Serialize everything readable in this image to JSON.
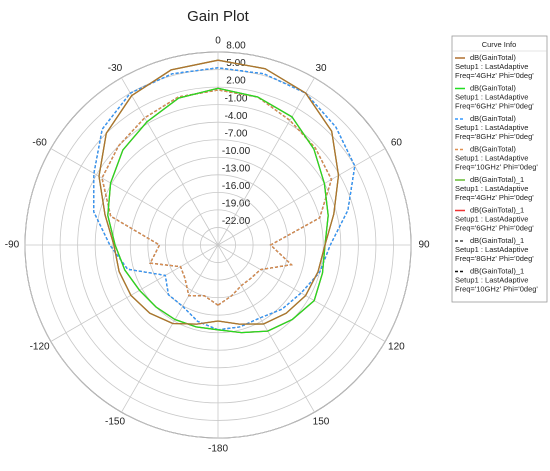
{
  "chart_data": {
    "type": "polar",
    "title": "Gain Plot",
    "theta": [
      -180,
      -165,
      -150,
      -135,
      -120,
      -105,
      -90,
      -75,
      -60,
      -45,
      -30,
      -15,
      0,
      15,
      30,
      45,
      60,
      75,
      90,
      105,
      120,
      135,
      150,
      165
    ],
    "thetaticks": [
      0,
      30,
      60,
      90,
      120,
      150,
      -180,
      -150,
      -120,
      -90,
      -60,
      -30
    ],
    "rlim": [
      -25,
      8
    ],
    "rticks": [
      {
        "value": -22,
        "label": "-22.00"
      },
      {
        "value": -19,
        "label": "-19.00"
      },
      {
        "value": -16,
        "label": "-16.00"
      },
      {
        "value": -13,
        "label": "-13.00"
      },
      {
        "value": -10,
        "label": "-10.00"
      },
      {
        "value": -7,
        "label": "-7.00"
      },
      {
        "value": -4,
        "label": "-4.00"
      },
      {
        "value": -1,
        "label": "-1.00"
      },
      {
        "value": 2,
        "label": "2.00"
      },
      {
        "value": 5,
        "label": "5.00"
      },
      {
        "value": 8,
        "label": "8.00"
      }
    ],
    "grid": true,
    "legend_title": "Curve Info",
    "legend_position": "upper right",
    "series": [
      {
        "name": "dB(GainTotal)",
        "setup": "Setup1 : LastAdaptive",
        "condition": "Freq='4GHz' Phi='0deg'",
        "color": "#b07030",
        "dashed": false,
        "values": [
          -12,
          -11,
          -9.5,
          -8.5,
          -7.8,
          -7.5,
          -7.2,
          -5,
          -1.5,
          2,
          4.5,
          6,
          6.6,
          6.2,
          5,
          2.5,
          -1.2,
          -4.5,
          -6.7,
          -7.3,
          -7.7,
          -8.5,
          -9.4,
          -11
        ]
      },
      {
        "name": "dB(GainTotal)",
        "setup": "Setup1 : LastAdaptive",
        "condition": "Freq='6GHz' Phi='0deg'",
        "color": "#22dd22",
        "dashed": false,
        "values": [
          -10.5,
          -10.5,
          -10.3,
          -10,
          -9.5,
          -8.5,
          -7.4,
          -5.5,
          -3.8,
          -2,
          -0.7,
          1,
          1.8,
          1.2,
          0.3,
          -1.8,
          -4,
          -5.5,
          -6.7,
          -6.5,
          -6,
          -7,
          -8,
          -9.5
        ]
      },
      {
        "name": "dB(GainTotal)",
        "setup": "Setup1 : LastAdaptive",
        "condition": "Freq='8GHz' Phi='0deg'",
        "color": "#3399ff",
        "dashed": true,
        "values": [
          -10.5,
          -11.5,
          -12.9,
          -13,
          -14.6,
          -9,
          -6.5,
          -3,
          -0.5,
          3,
          5,
          5.3,
          5.3,
          5.3,
          5,
          3.5,
          2,
          -2,
          -5.8,
          -7,
          -8.6,
          -9.5,
          -10.6,
          -10.5
        ]
      },
      {
        "name": "dB(GainTotal)",
        "setup": "Setup1 : LastAdaptive",
        "condition": "Freq='10GHz' Phi='0deg'",
        "color": "#e09050",
        "dashed": true,
        "values": [
          -14.7,
          -16,
          -15,
          -17,
          -17.6,
          -13,
          -15,
          -6,
          -2.1,
          -1,
          0.1,
          1.2,
          1.5,
          1.2,
          -0.4,
          -1.5,
          -2.6,
          -7,
          -16,
          -12,
          -16.6,
          -17,
          -17,
          -16
        ]
      },
      {
        "name": "dB(GainTotal)_1",
        "setup": "Setup1 : LastAdaptive",
        "condition": "Freq='4GHz' Phi='0deg'",
        "color": "#66bb33",
        "dashed": false,
        "values": [
          -12,
          -11,
          -9.5,
          -8.5,
          -7.8,
          -7.5,
          -7.2,
          -5,
          -1.5,
          2,
          4.5,
          6,
          6.6,
          6.2,
          5,
          2.5,
          -1.2,
          -4.5,
          -6.7,
          -7.3,
          -7.7,
          -8.5,
          -9.4,
          -11
        ]
      },
      {
        "name": "dB(GainTotal)_1",
        "setup": "Setup1 : LastAdaptive",
        "condition": "Freq='6GHz' Phi='0deg'",
        "color": "#ee3333",
        "dashed": false,
        "values": [
          -10.5,
          -10.5,
          -10.3,
          -10,
          -9.5,
          -8.5,
          -7.4,
          -5.5,
          -3.8,
          -2,
          -0.7,
          1,
          1.8,
          1.2,
          0.3,
          -1.8,
          -4,
          -5.5,
          -6.7,
          -6.5,
          -6,
          -7,
          -8,
          -9.5
        ]
      },
      {
        "name": "dB(GainTotal)_1",
        "setup": "Setup1 : LastAdaptive",
        "condition": "Freq='8GHz' Phi='0deg'",
        "color": "#444444",
        "dashed": true,
        "values": [
          -10.5,
          -11.5,
          -12.9,
          -13,
          -14.6,
          -9,
          -6.5,
          -3,
          -0.5,
          3,
          5,
          5.3,
          5.3,
          5.3,
          5,
          3.5,
          2,
          -2,
          -5.8,
          -7,
          -8.6,
          -9.5,
          -10.6,
          -10.5
        ]
      },
      {
        "name": "dB(GainTotal)_1",
        "setup": "Setup1 : LastAdaptive",
        "condition": "Freq='10GHz' Phi='0deg'",
        "color": "#111111",
        "dashed": true,
        "values": [
          -14.7,
          -16,
          -15,
          -17,
          -17.6,
          -13,
          -15,
          -6,
          -2.1,
          -1,
          0.1,
          1.2,
          1.5,
          1.2,
          -0.4,
          -1.5,
          -2.6,
          -7,
          -16,
          -12,
          -16.6,
          -17,
          -17,
          -16
        ]
      }
    ]
  }
}
